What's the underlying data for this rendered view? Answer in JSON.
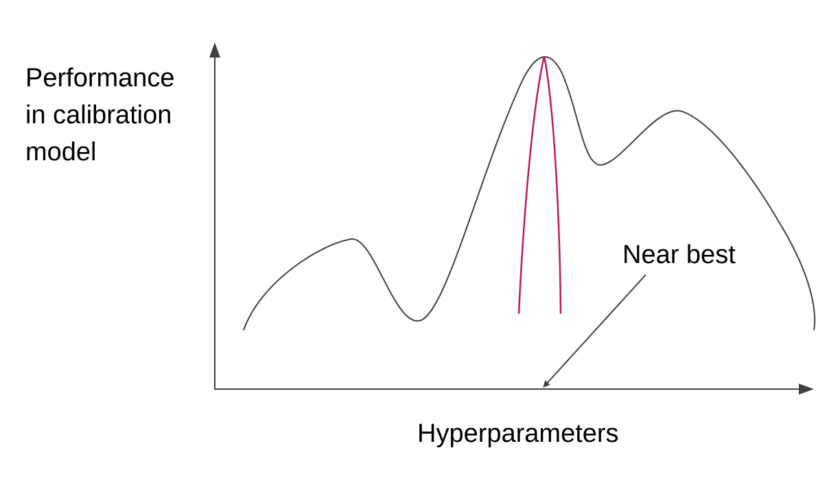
{
  "diagram": {
    "y_axis_label_lines": [
      "Performance",
      "in calibration",
      "model"
    ],
    "x_axis_label": "Hyperparameters",
    "annotation": "Near best",
    "colors": {
      "axis": "#404040",
      "curve": "#404040",
      "highlight": "#c2185b",
      "text": "#000000"
    }
  }
}
